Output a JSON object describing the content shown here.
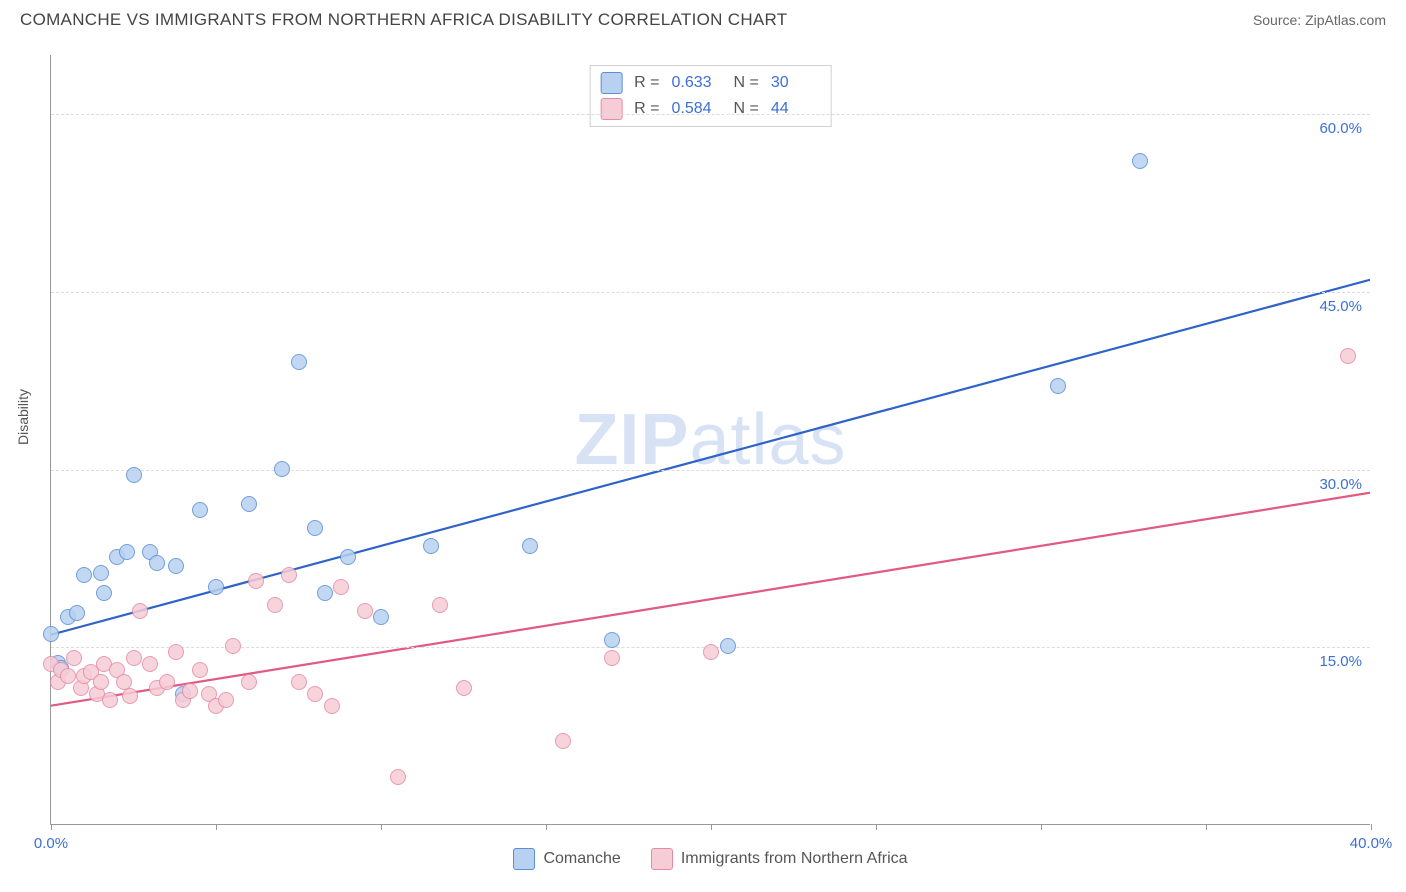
{
  "header": {
    "title": "COMANCHE VS IMMIGRANTS FROM NORTHERN AFRICA DISABILITY CORRELATION CHART",
    "source_prefix": "Source: ",
    "source": "ZipAtlas.com"
  },
  "chart": {
    "type": "scatter",
    "ylabel": "Disability",
    "watermark": "ZIPatlas",
    "xlim": [
      0,
      40
    ],
    "ylim": [
      0,
      65
    ],
    "xticks": [
      0,
      5,
      10,
      15,
      20,
      25,
      30,
      35,
      40
    ],
    "xtick_labels_shown": {
      "0": "0.0%",
      "40": "40.0%"
    },
    "yticks": [
      15,
      30,
      45,
      60
    ],
    "ytick_labels": [
      "15.0%",
      "30.0%",
      "45.0%",
      "60.0%"
    ],
    "grid_color": "#dcdcdc",
    "background_color": "#ffffff",
    "marker_radius": 8,
    "marker_stroke_width": 1,
    "trend_line_width": 2.2,
    "series": [
      {
        "id": "comanche",
        "label": "Comanche",
        "fill": "#b8d1f0",
        "stroke": "#5a8fd6",
        "line_color": "#2f63c9",
        "R": "0.633",
        "N": "30",
        "trend": {
          "y_at_x0": 16.0,
          "y_at_xmax": 46.0
        },
        "points": [
          [
            0.0,
            16.0
          ],
          [
            0.2,
            13.6
          ],
          [
            0.3,
            13.2
          ],
          [
            0.5,
            17.5
          ],
          [
            0.8,
            17.8
          ],
          [
            1.0,
            21.0
          ],
          [
            1.5,
            21.2
          ],
          [
            1.6,
            19.5
          ],
          [
            2.0,
            22.5
          ],
          [
            2.3,
            23.0
          ],
          [
            2.5,
            29.5
          ],
          [
            3.0,
            23.0
          ],
          [
            3.2,
            22.0
          ],
          [
            3.8,
            21.8
          ],
          [
            4.0,
            11.0
          ],
          [
            4.5,
            26.5
          ],
          [
            5.0,
            20.0
          ],
          [
            6.0,
            27.0
          ],
          [
            7.0,
            30.0
          ],
          [
            7.5,
            39.0
          ],
          [
            8.0,
            25.0
          ],
          [
            8.3,
            19.5
          ],
          [
            9.0,
            22.5
          ],
          [
            10.0,
            17.5
          ],
          [
            11.5,
            23.5
          ],
          [
            14.5,
            23.5
          ],
          [
            17.0,
            15.5
          ],
          [
            20.5,
            15.0
          ],
          [
            30.5,
            37.0
          ],
          [
            33.0,
            56.0
          ]
        ]
      },
      {
        "id": "northern_africa",
        "label": "Immigrants from Northern Africa",
        "fill": "#f6cdd7",
        "stroke": "#e58aa3",
        "line_color": "#e05a82",
        "R": "0.584",
        "N": "44",
        "trend": {
          "y_at_x0": 10.0,
          "y_at_xmax": 28.0
        },
        "points": [
          [
            0.0,
            13.5
          ],
          [
            0.2,
            12.0
          ],
          [
            0.3,
            13.0
          ],
          [
            0.5,
            12.5
          ],
          [
            0.7,
            14.0
          ],
          [
            0.9,
            11.5
          ],
          [
            1.0,
            12.5
          ],
          [
            1.2,
            12.8
          ],
          [
            1.4,
            11.0
          ],
          [
            1.5,
            12.0
          ],
          [
            1.6,
            13.5
          ],
          [
            1.8,
            10.5
          ],
          [
            2.0,
            13.0
          ],
          [
            2.2,
            12.0
          ],
          [
            2.4,
            10.8
          ],
          [
            2.5,
            14.0
          ],
          [
            2.7,
            18.0
          ],
          [
            3.0,
            13.5
          ],
          [
            3.2,
            11.5
          ],
          [
            3.5,
            12.0
          ],
          [
            3.8,
            14.5
          ],
          [
            4.0,
            10.5
          ],
          [
            4.2,
            11.2
          ],
          [
            4.5,
            13.0
          ],
          [
            4.8,
            11.0
          ],
          [
            5.0,
            10.0
          ],
          [
            5.3,
            10.5
          ],
          [
            5.5,
            15.0
          ],
          [
            6.0,
            12.0
          ],
          [
            6.2,
            20.5
          ],
          [
            6.8,
            18.5
          ],
          [
            7.2,
            21.0
          ],
          [
            7.5,
            12.0
          ],
          [
            8.0,
            11.0
          ],
          [
            8.5,
            10.0
          ],
          [
            8.8,
            20.0
          ],
          [
            9.5,
            18.0
          ],
          [
            10.5,
            4.0
          ],
          [
            11.8,
            18.5
          ],
          [
            12.5,
            11.5
          ],
          [
            15.5,
            7.0
          ],
          [
            17.0,
            14.0
          ],
          [
            20.0,
            14.5
          ],
          [
            39.3,
            39.5
          ]
        ]
      }
    ],
    "bottom_legend": [
      "Comanche",
      "Immigrants from Northern Africa"
    ]
  }
}
